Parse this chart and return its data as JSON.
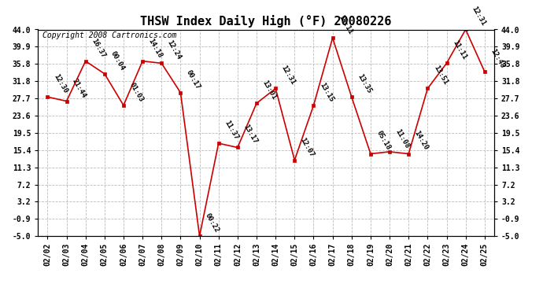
{
  "title": "THSW Index Daily High (°F) 20080226",
  "copyright": "Copyright 2008 Cartronics.com",
  "dates": [
    "02/02",
    "02/03",
    "02/04",
    "02/05",
    "02/06",
    "02/07",
    "02/08",
    "02/09",
    "02/10",
    "02/11",
    "02/12",
    "02/13",
    "02/14",
    "02/15",
    "02/16",
    "02/17",
    "02/18",
    "02/19",
    "02/20",
    "02/21",
    "02/22",
    "02/23",
    "02/24",
    "02/25"
  ],
  "values": [
    28.0,
    27.0,
    36.5,
    33.5,
    26.0,
    36.5,
    36.0,
    29.0,
    -5.0,
    17.0,
    16.0,
    26.5,
    30.0,
    13.0,
    26.0,
    42.0,
    28.0,
    14.5,
    15.0,
    14.5,
    30.0,
    36.0,
    44.0,
    34.0
  ],
  "labels": [
    "12:30",
    "21:44",
    "16:37",
    "00:04",
    "01:03",
    "14:18",
    "12:24",
    "00:17",
    "00:22",
    "11:37",
    "13:17",
    "13:01",
    "12:31",
    "12:07",
    "13:15",
    "15:11",
    "13:35",
    "05:18",
    "11:08",
    "14:20",
    "13:51",
    "11:11",
    "12:31",
    "12:48"
  ],
  "ylim_min": -5.0,
  "ylim_max": 44.0,
  "yticks": [
    -5.0,
    -0.9,
    3.2,
    7.2,
    11.3,
    15.4,
    19.5,
    23.6,
    27.7,
    31.8,
    35.8,
    39.9,
    44.0
  ],
  "ytick_labels": [
    "-5.0",
    "-0.9",
    "3.2",
    "7.2",
    "11.3",
    "15.4",
    "19.5",
    "23.6",
    "27.7",
    "31.8",
    "35.8",
    "39.9",
    "44.0"
  ],
  "line_color": "#CC0000",
  "bg_color": "#FFFFFF",
  "grid_color": "#BBBBBB",
  "title_fontsize": 11,
  "label_fontsize": 6.5,
  "tick_fontsize": 7,
  "copyright_fontsize": 7
}
